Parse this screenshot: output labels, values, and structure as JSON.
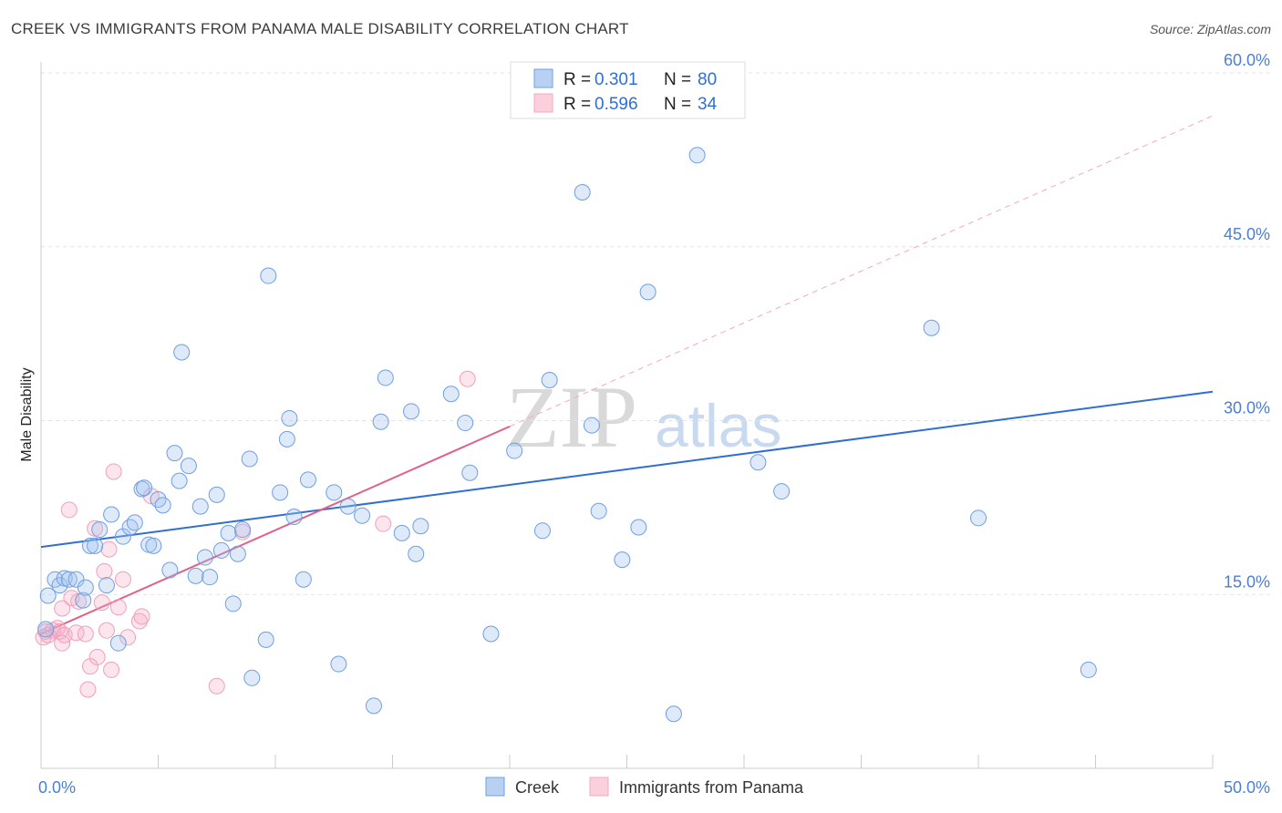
{
  "title": "CREEK VS IMMIGRANTS FROM PANAMA MALE DISABILITY CORRELATION CHART",
  "source": "Source: ZipAtlas.com",
  "watermark": {
    "zip": "ZIP",
    "atlas": "atlas"
  },
  "legend": {
    "rows": [
      {
        "r_label": "R =",
        "r_value": "0.301",
        "n_label": "N =",
        "n_value": "80"
      },
      {
        "r_label": "R =",
        "r_value": "0.596",
        "n_label": "N =",
        "n_value": "34"
      }
    ]
  },
  "bottom_legend": [
    "Creek",
    "Immigrants from Panama"
  ],
  "chart_data": {
    "type": "scatter",
    "title": "CREEK VS IMMIGRANTS FROM PANAMA MALE DISABILITY CORRELATION CHART",
    "xlabel": "",
    "ylabel": "Male Disability",
    "xlim": [
      0,
      50
    ],
    "ylim": [
      0,
      60
    ],
    "x_tick_labels": [
      "0.0%",
      "50.0%"
    ],
    "y_ticks": [
      15,
      30,
      45,
      60
    ],
    "y_tick_labels": [
      "15.0%",
      "30.0%",
      "45.0%",
      "60.0%"
    ],
    "grid": true,
    "legend_position": "top-center",
    "colors": {
      "creek": "#6f9fe0",
      "creek_line": "#2f6fd1",
      "panama": "#f4a8c0",
      "panama_line": "#e0608a"
    },
    "series": [
      {
        "name": "Creek",
        "r": 0.301,
        "n": 80,
        "trend": {
          "x": [
            0,
            50
          ],
          "y": [
            19.1,
            32.5
          ]
        },
        "points": [
          [
            0.2,
            12.0
          ],
          [
            0.3,
            14.9
          ],
          [
            0.6,
            16.3
          ],
          [
            0.8,
            15.8
          ],
          [
            1.0,
            16.4
          ],
          [
            1.2,
            16.3
          ],
          [
            1.5,
            16.3
          ],
          [
            1.8,
            14.5
          ],
          [
            1.9,
            15.6
          ],
          [
            2.1,
            19.2
          ],
          [
            2.3,
            19.2
          ],
          [
            2.5,
            20.6
          ],
          [
            2.8,
            15.8
          ],
          [
            3.0,
            21.9
          ],
          [
            3.3,
            10.8
          ],
          [
            3.5,
            20.0
          ],
          [
            3.8,
            20.8
          ],
          [
            4.0,
            21.2
          ],
          [
            4.3,
            24.1
          ],
          [
            4.4,
            24.2
          ],
          [
            4.6,
            19.3
          ],
          [
            4.8,
            19.2
          ],
          [
            5.0,
            23.2
          ],
          [
            5.2,
            22.7
          ],
          [
            5.5,
            17.1
          ],
          [
            5.7,
            27.2
          ],
          [
            5.9,
            24.8
          ],
          [
            6.0,
            35.9
          ],
          [
            6.3,
            26.1
          ],
          [
            6.6,
            16.6
          ],
          [
            6.8,
            22.6
          ],
          [
            7.0,
            18.2
          ],
          [
            7.2,
            16.5
          ],
          [
            7.5,
            23.6
          ],
          [
            7.7,
            18.8
          ],
          [
            8.0,
            20.3
          ],
          [
            8.2,
            14.2
          ],
          [
            8.4,
            18.5
          ],
          [
            8.6,
            20.6
          ],
          [
            8.9,
            26.7
          ],
          [
            9.0,
            7.8
          ],
          [
            9.6,
            11.1
          ],
          [
            9.7,
            42.5
          ],
          [
            10.2,
            23.8
          ],
          [
            10.5,
            28.4
          ],
          [
            10.6,
            30.2
          ],
          [
            10.8,
            21.7
          ],
          [
            11.2,
            16.3
          ],
          [
            11.4,
            24.9
          ],
          [
            12.5,
            23.8
          ],
          [
            12.7,
            9.0
          ],
          [
            13.1,
            22.6
          ],
          [
            13.7,
            21.8
          ],
          [
            14.2,
            5.4
          ],
          [
            14.5,
            29.9
          ],
          [
            14.7,
            33.7
          ],
          [
            15.4,
            20.3
          ],
          [
            15.8,
            30.8
          ],
          [
            16.0,
            18.5
          ],
          [
            16.2,
            20.9
          ],
          [
            17.5,
            32.3
          ],
          [
            18.1,
            29.8
          ],
          [
            18.3,
            25.5
          ],
          [
            19.2,
            11.6
          ],
          [
            20.2,
            27.4
          ],
          [
            21.4,
            20.5
          ],
          [
            21.7,
            33.5
          ],
          [
            23.1,
            49.7
          ],
          [
            23.5,
            29.6
          ],
          [
            23.8,
            22.2
          ],
          [
            24.8,
            18.0
          ],
          [
            25.5,
            20.8
          ],
          [
            25.9,
            41.1
          ],
          [
            27.0,
            4.7
          ],
          [
            28.0,
            52.9
          ],
          [
            30.6,
            26.4
          ],
          [
            31.6,
            23.9
          ],
          [
            38.0,
            38.0
          ],
          [
            40.0,
            21.6
          ],
          [
            44.7,
            8.5
          ]
        ]
      },
      {
        "name": "Immigrants from Panama",
        "r": 0.596,
        "n": 34,
        "trend": {
          "x": [
            0,
            20
          ],
          "y": [
            11.6,
            29.5
          ]
        },
        "trend_extension": {
          "x": [
            20,
            50
          ],
          "y": [
            29.5,
            56.3
          ]
        },
        "points": [
          [
            0.1,
            11.3
          ],
          [
            0.2,
            11.8
          ],
          [
            0.3,
            11.5
          ],
          [
            0.5,
            11.9
          ],
          [
            0.7,
            12.1
          ],
          [
            0.8,
            11.8
          ],
          [
            0.9,
            13.8
          ],
          [
            0.9,
            10.8
          ],
          [
            1.0,
            11.5
          ],
          [
            1.2,
            22.3
          ],
          [
            1.3,
            14.7
          ],
          [
            1.5,
            11.7
          ],
          [
            1.6,
            14.4
          ],
          [
            1.9,
            11.6
          ],
          [
            2.0,
            6.8
          ],
          [
            2.1,
            8.8
          ],
          [
            2.3,
            20.7
          ],
          [
            2.4,
            9.6
          ],
          [
            2.6,
            14.3
          ],
          [
            2.7,
            17.0
          ],
          [
            2.8,
            11.9
          ],
          [
            2.9,
            18.9
          ],
          [
            3.0,
            8.5
          ],
          [
            3.1,
            25.6
          ],
          [
            3.3,
            13.9
          ],
          [
            3.5,
            16.3
          ],
          [
            3.7,
            11.3
          ],
          [
            4.2,
            12.7
          ],
          [
            4.3,
            13.1
          ],
          [
            4.7,
            23.5
          ],
          [
            7.5,
            7.1
          ],
          [
            8.6,
            20.4
          ],
          [
            14.6,
            21.1
          ],
          [
            18.2,
            33.6
          ]
        ]
      }
    ]
  }
}
